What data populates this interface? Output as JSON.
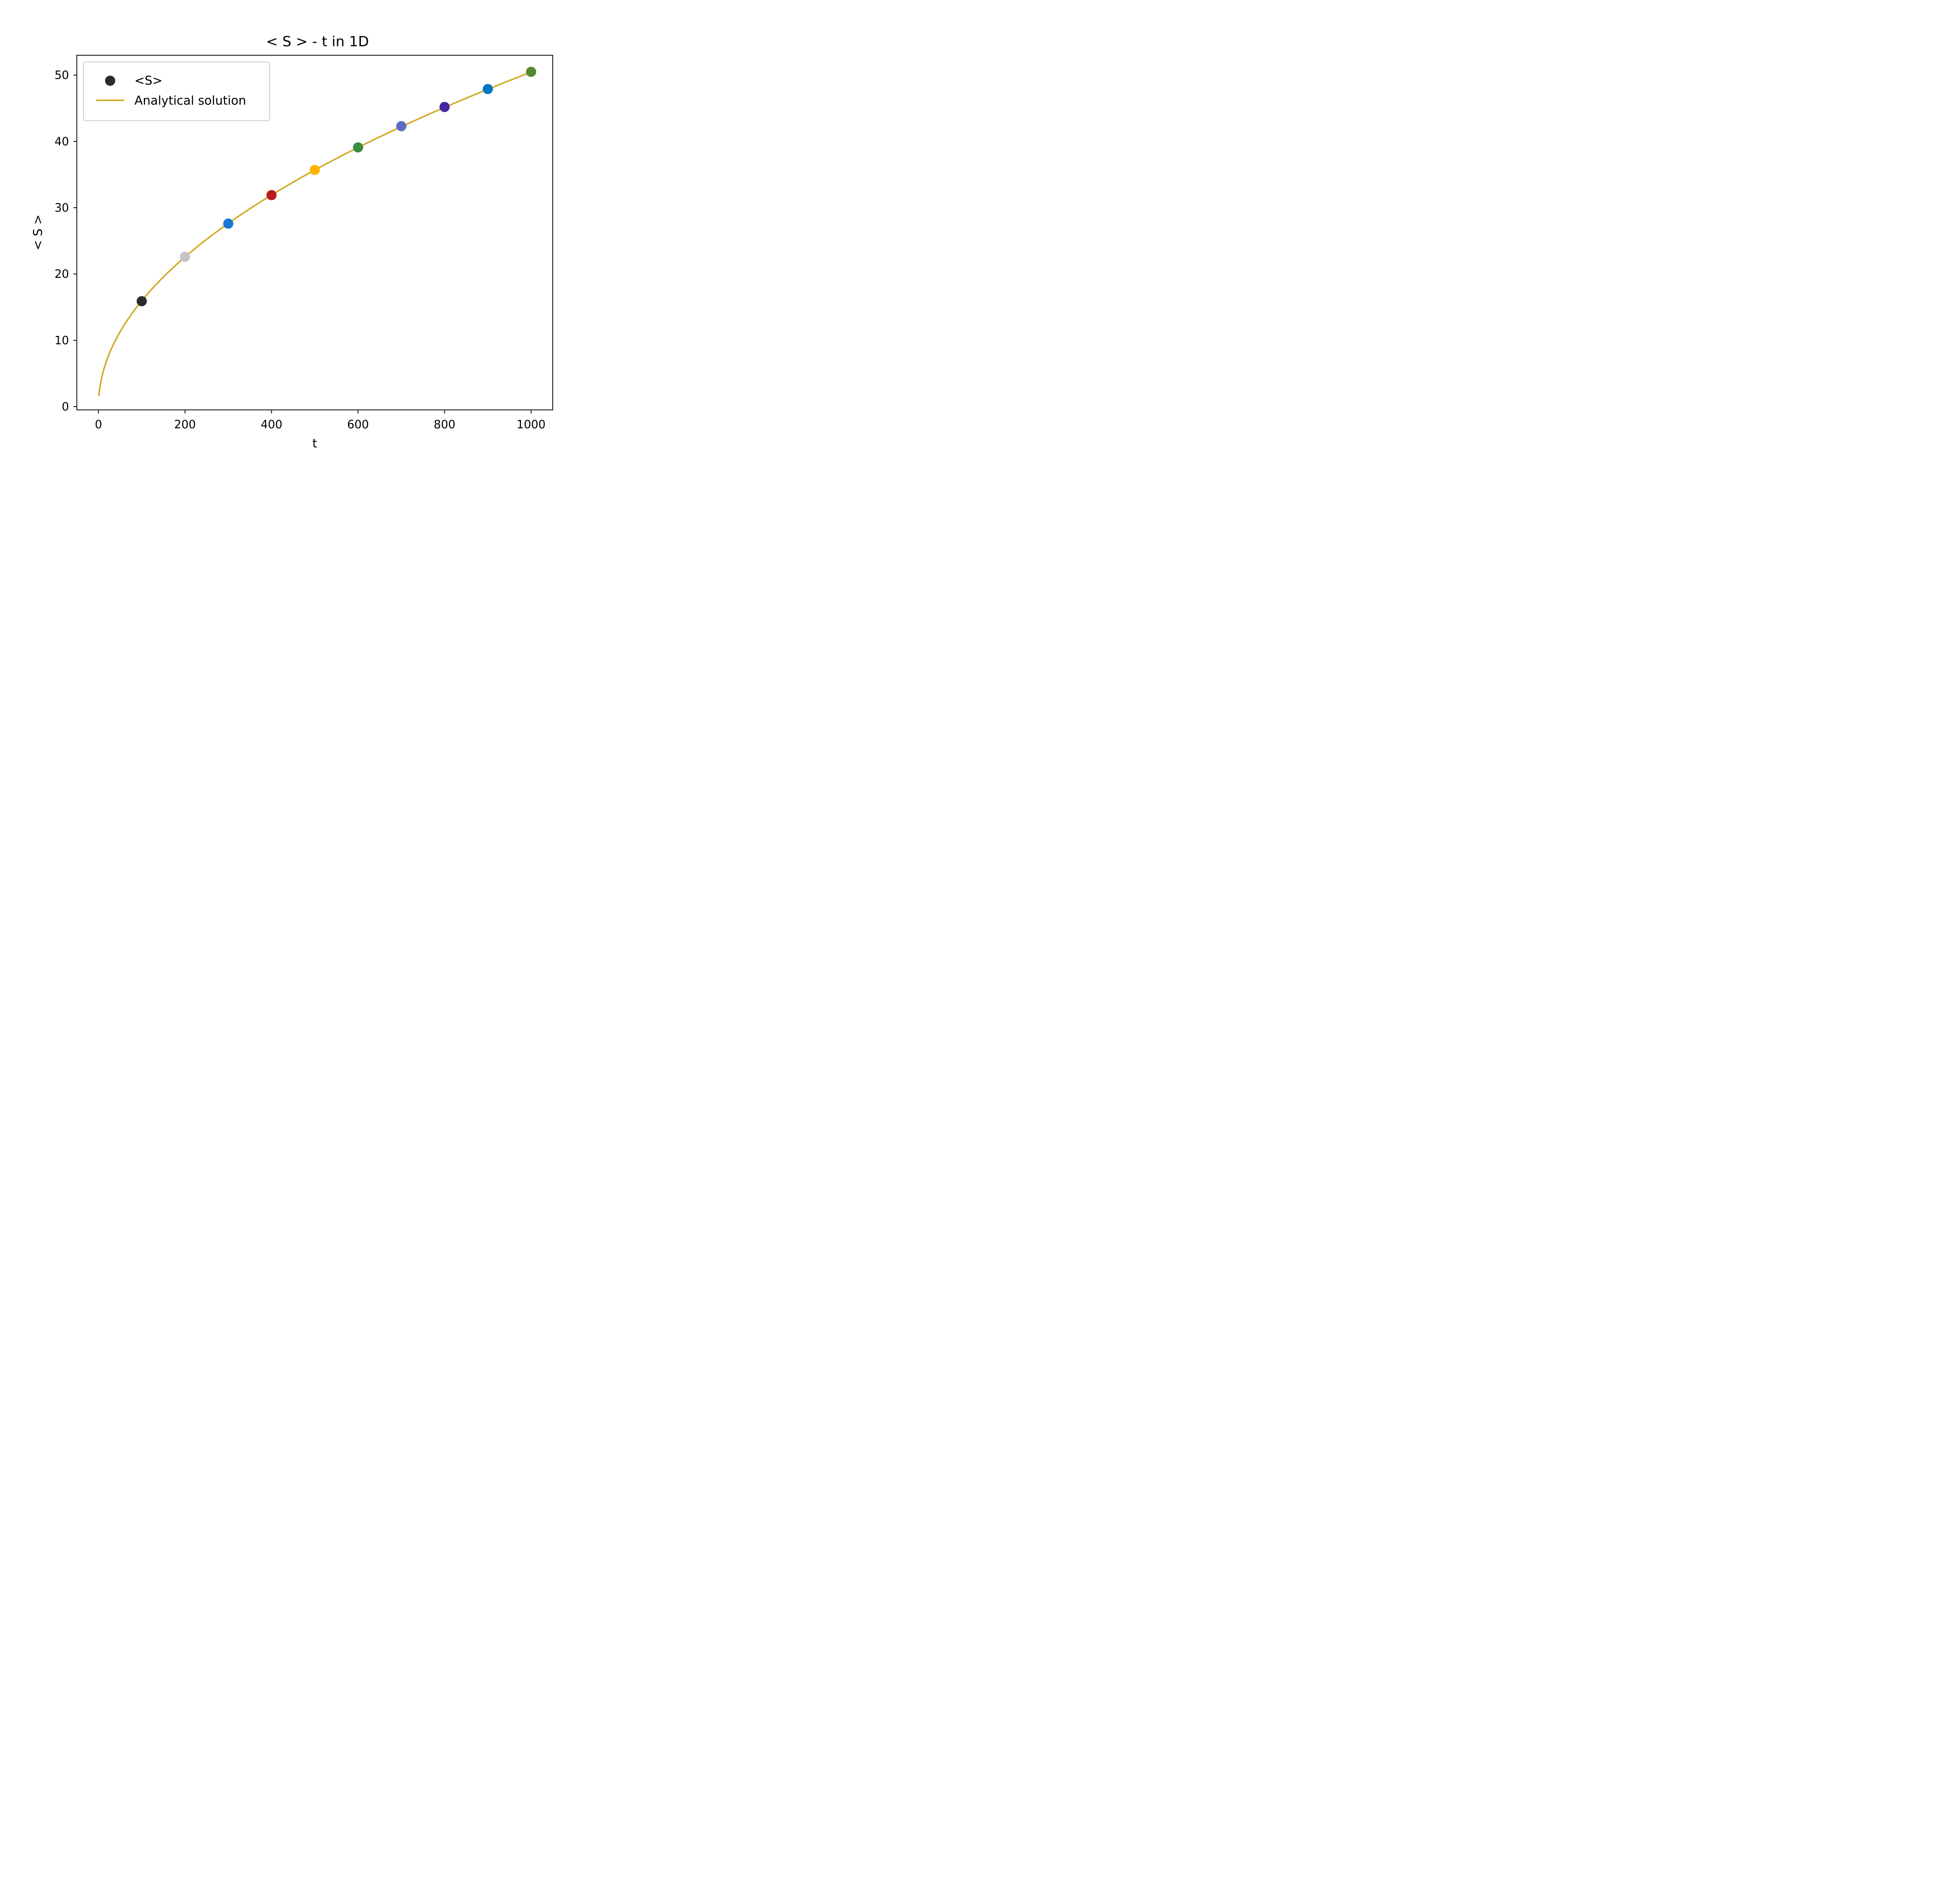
{
  "chart_data": {
    "type": "scatter",
    "title": "< S >  - t in 1D",
    "xlabel": "t",
    "ylabel": "< S >",
    "xlim": [
      -50,
      1050
    ],
    "ylim": [
      -0.5,
      53
    ],
    "x_ticks": [
      0,
      200,
      400,
      600,
      800,
      1000
    ],
    "y_ticks": [
      0,
      10,
      20,
      30,
      40,
      50
    ],
    "grid": false,
    "legend_position": "upper-left",
    "series": [
      {
        "name": "<S>",
        "kind": "scatter",
        "legend_color": "#2b2b2e",
        "x": [
          100,
          200,
          300,
          400,
          500,
          600,
          700,
          800,
          900,
          1000
        ],
        "y": [
          15.9,
          22.6,
          27.6,
          31.9,
          35.7,
          39.1,
          42.3,
          45.2,
          47.9,
          50.5
        ],
        "colors": [
          "#2b2b2e",
          "#c4c4c4",
          "#1976d2",
          "#b71c1c",
          "#ffb300",
          "#388e3c",
          "#5c6bc0",
          "#4527a0",
          "#0277bd",
          "#558b2f"
        ]
      },
      {
        "name": "Analytical solution",
        "kind": "line",
        "formula": "sqrt(8t/pi)",
        "color": "#d4ac2b",
        "t_range": [
          1,
          1000
        ]
      }
    ]
  }
}
